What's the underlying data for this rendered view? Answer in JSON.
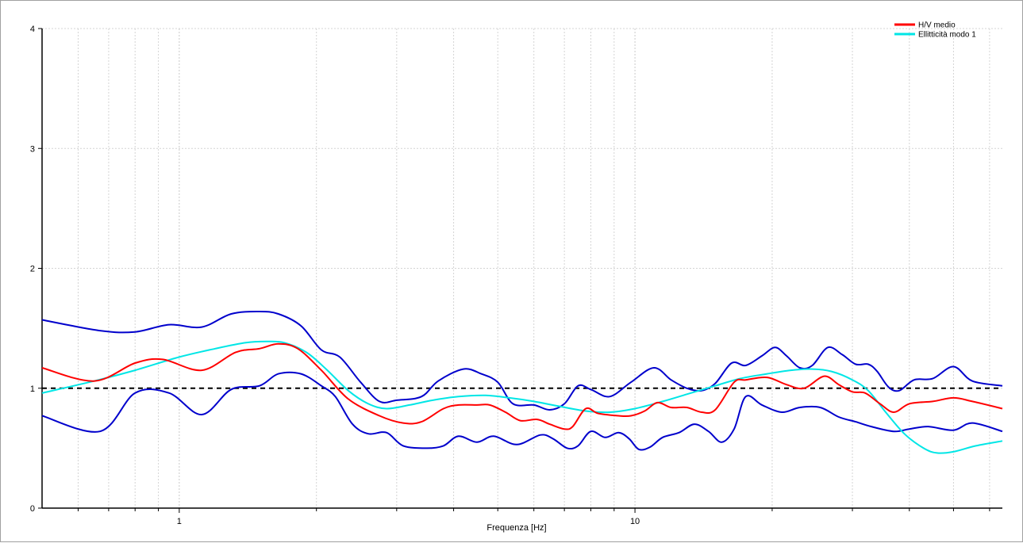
{
  "chart_data": {
    "type": "line",
    "xlabel": "Frequenza [Hz]",
    "ylabel": "",
    "xscale": "log",
    "xlim": [
      0.5,
      64
    ],
    "ylim": [
      0,
      4
    ],
    "x_tick_labels": [
      {
        "value": 1,
        "label": "1"
      },
      {
        "value": 10,
        "label": "10"
      }
    ],
    "y_tick_labels": [
      {
        "value": 0,
        "label": "0"
      },
      {
        "value": 1,
        "label": "1"
      },
      {
        "value": 2,
        "label": "2"
      },
      {
        "value": 3,
        "label": "3"
      },
      {
        "value": 4,
        "label": "4"
      }
    ],
    "grid": true,
    "legend_position": "top-right",
    "reference_line": {
      "y": 1,
      "style": "dashed",
      "color": "#000000"
    },
    "series": [
      {
        "name": "H/V medio",
        "color": "#ff0000",
        "points": [
          [
            0.5,
            1.17
          ],
          [
            0.65,
            1.06
          ],
          [
            0.8,
            1.21
          ],
          [
            0.92,
            1.24
          ],
          [
            1.12,
            1.15
          ],
          [
            1.33,
            1.3
          ],
          [
            1.5,
            1.33
          ],
          [
            1.65,
            1.37
          ],
          [
            1.82,
            1.33
          ],
          [
            2.05,
            1.15
          ],
          [
            2.35,
            0.91
          ],
          [
            2.75,
            0.77
          ],
          [
            3.1,
            0.71
          ],
          [
            3.4,
            0.72
          ],
          [
            3.8,
            0.83
          ],
          [
            4.1,
            0.86
          ],
          [
            4.5,
            0.86
          ],
          [
            4.8,
            0.86
          ],
          [
            5.2,
            0.8
          ],
          [
            5.6,
            0.73
          ],
          [
            6.1,
            0.74
          ],
          [
            6.5,
            0.7
          ],
          [
            7.0,
            0.66
          ],
          [
            7.3,
            0.68
          ],
          [
            7.8,
            0.83
          ],
          [
            8.3,
            0.79
          ],
          [
            9.2,
            0.77
          ],
          [
            9.8,
            0.77
          ],
          [
            10.5,
            0.81
          ],
          [
            11.2,
            0.88
          ],
          [
            12.0,
            0.84
          ],
          [
            13.0,
            0.84
          ],
          [
            14.0,
            0.8
          ],
          [
            15.0,
            0.82
          ],
          [
            16.5,
            1.05
          ],
          [
            17.5,
            1.07
          ],
          [
            19.5,
            1.09
          ],
          [
            21.5,
            1.03
          ],
          [
            23.5,
            1.0
          ],
          [
            26.0,
            1.1
          ],
          [
            28.0,
            1.03
          ],
          [
            30.0,
            0.97
          ],
          [
            32.0,
            0.96
          ],
          [
            34.5,
            0.87
          ],
          [
            37.0,
            0.8
          ],
          [
            40.0,
            0.87
          ],
          [
            45.0,
            0.89
          ],
          [
            50.0,
            0.92
          ],
          [
            55.0,
            0.89
          ],
          [
            64.0,
            0.83
          ]
        ]
      },
      {
        "name": "Ellitticità modo 1",
        "color": "#00e6e6",
        "points": [
          [
            0.5,
            0.96
          ],
          [
            0.65,
            1.06
          ],
          [
            0.8,
            1.15
          ],
          [
            1.0,
            1.26
          ],
          [
            1.2,
            1.33
          ],
          [
            1.4,
            1.38
          ],
          [
            1.55,
            1.39
          ],
          [
            1.7,
            1.38
          ],
          [
            1.9,
            1.3
          ],
          [
            2.1,
            1.16
          ],
          [
            2.35,
            0.98
          ],
          [
            2.6,
            0.87
          ],
          [
            2.85,
            0.83
          ],
          [
            3.2,
            0.86
          ],
          [
            3.6,
            0.9
          ],
          [
            4.1,
            0.93
          ],
          [
            4.7,
            0.94
          ],
          [
            5.3,
            0.92
          ],
          [
            6.0,
            0.89
          ],
          [
            6.8,
            0.85
          ],
          [
            7.8,
            0.81
          ],
          [
            8.8,
            0.8
          ],
          [
            10.0,
            0.83
          ],
          [
            11.5,
            0.89
          ],
          [
            13.0,
            0.95
          ],
          [
            15.0,
            1.02
          ],
          [
            17.0,
            1.08
          ],
          [
            19.5,
            1.12
          ],
          [
            22.0,
            1.15
          ],
          [
            24.5,
            1.16
          ],
          [
            27.0,
            1.14
          ],
          [
            30.0,
            1.07
          ],
          [
            32.5,
            0.98
          ],
          [
            35.5,
            0.8
          ],
          [
            39.0,
            0.62
          ],
          [
            43.0,
            0.5
          ],
          [
            46.0,
            0.46
          ],
          [
            50.0,
            0.47
          ],
          [
            56.0,
            0.52
          ],
          [
            64.0,
            0.56
          ]
        ]
      },
      {
        "name": "",
        "color": "#0000cc",
        "points": [
          [
            0.5,
            1.57
          ],
          [
            0.67,
            1.48
          ],
          [
            0.8,
            1.47
          ],
          [
            0.95,
            1.53
          ],
          [
            1.12,
            1.51
          ],
          [
            1.3,
            1.62
          ],
          [
            1.5,
            1.64
          ],
          [
            1.65,
            1.62
          ],
          [
            1.85,
            1.52
          ],
          [
            2.05,
            1.32
          ],
          [
            2.25,
            1.26
          ],
          [
            2.5,
            1.05
          ],
          [
            2.75,
            0.89
          ],
          [
            3.0,
            0.9
          ],
          [
            3.4,
            0.93
          ],
          [
            3.7,
            1.06
          ],
          [
            4.2,
            1.16
          ],
          [
            4.6,
            1.12
          ],
          [
            5.0,
            1.05
          ],
          [
            5.4,
            0.87
          ],
          [
            6.0,
            0.86
          ],
          [
            6.5,
            0.82
          ],
          [
            7.0,
            0.87
          ],
          [
            7.5,
            1.02
          ],
          [
            8.0,
            0.99
          ],
          [
            8.8,
            0.93
          ],
          [
            9.8,
            1.05
          ],
          [
            11.0,
            1.17
          ],
          [
            12.0,
            1.07
          ],
          [
            13.0,
            1.0
          ],
          [
            14.0,
            0.98
          ],
          [
            15.0,
            1.04
          ],
          [
            16.3,
            1.21
          ],
          [
            17.5,
            1.19
          ],
          [
            19.0,
            1.27
          ],
          [
            20.3,
            1.34
          ],
          [
            21.5,
            1.27
          ],
          [
            23.0,
            1.17
          ],
          [
            24.5,
            1.19
          ],
          [
            26.5,
            1.34
          ],
          [
            28.5,
            1.28
          ],
          [
            30.5,
            1.2
          ],
          [
            32.5,
            1.2
          ],
          [
            34.0,
            1.14
          ],
          [
            36.0,
            1.01
          ],
          [
            38.0,
            0.98
          ],
          [
            41.0,
            1.07
          ],
          [
            45.0,
            1.08
          ],
          [
            50.0,
            1.18
          ],
          [
            55.0,
            1.06
          ],
          [
            64.0,
            1.02
          ]
        ]
      },
      {
        "name": "",
        "color": "#0000cc",
        "points": [
          [
            0.5,
            0.77
          ],
          [
            0.67,
            0.64
          ],
          [
            0.8,
            0.96
          ],
          [
            0.95,
            0.96
          ],
          [
            1.12,
            0.78
          ],
          [
            1.3,
            0.99
          ],
          [
            1.5,
            1.02
          ],
          [
            1.65,
            1.12
          ],
          [
            1.85,
            1.12
          ],
          [
            2.05,
            1.02
          ],
          [
            2.2,
            0.93
          ],
          [
            2.4,
            0.7
          ],
          [
            2.6,
            0.62
          ],
          [
            2.85,
            0.63
          ],
          [
            3.1,
            0.52
          ],
          [
            3.5,
            0.5
          ],
          [
            3.8,
            0.52
          ],
          [
            4.1,
            0.6
          ],
          [
            4.5,
            0.55
          ],
          [
            4.9,
            0.6
          ],
          [
            5.5,
            0.53
          ],
          [
            6.2,
            0.61
          ],
          [
            6.6,
            0.58
          ],
          [
            7.1,
            0.5
          ],
          [
            7.5,
            0.52
          ],
          [
            8.0,
            0.64
          ],
          [
            8.6,
            0.59
          ],
          [
            9.2,
            0.63
          ],
          [
            9.7,
            0.58
          ],
          [
            10.2,
            0.49
          ],
          [
            10.8,
            0.51
          ],
          [
            11.5,
            0.59
          ],
          [
            12.5,
            0.63
          ],
          [
            13.5,
            0.7
          ],
          [
            14.5,
            0.64
          ],
          [
            15.5,
            0.55
          ],
          [
            16.5,
            0.66
          ],
          [
            17.5,
            0.93
          ],
          [
            19.0,
            0.86
          ],
          [
            21.0,
            0.8
          ],
          [
            23.0,
            0.84
          ],
          [
            25.5,
            0.84
          ],
          [
            28.0,
            0.76
          ],
          [
            30.5,
            0.72
          ],
          [
            33.0,
            0.68
          ],
          [
            37.0,
            0.64
          ],
          [
            40.0,
            0.66
          ],
          [
            44.0,
            0.68
          ],
          [
            50.0,
            0.65
          ],
          [
            55.0,
            0.71
          ],
          [
            64.0,
            0.64
          ]
        ]
      }
    ]
  }
}
